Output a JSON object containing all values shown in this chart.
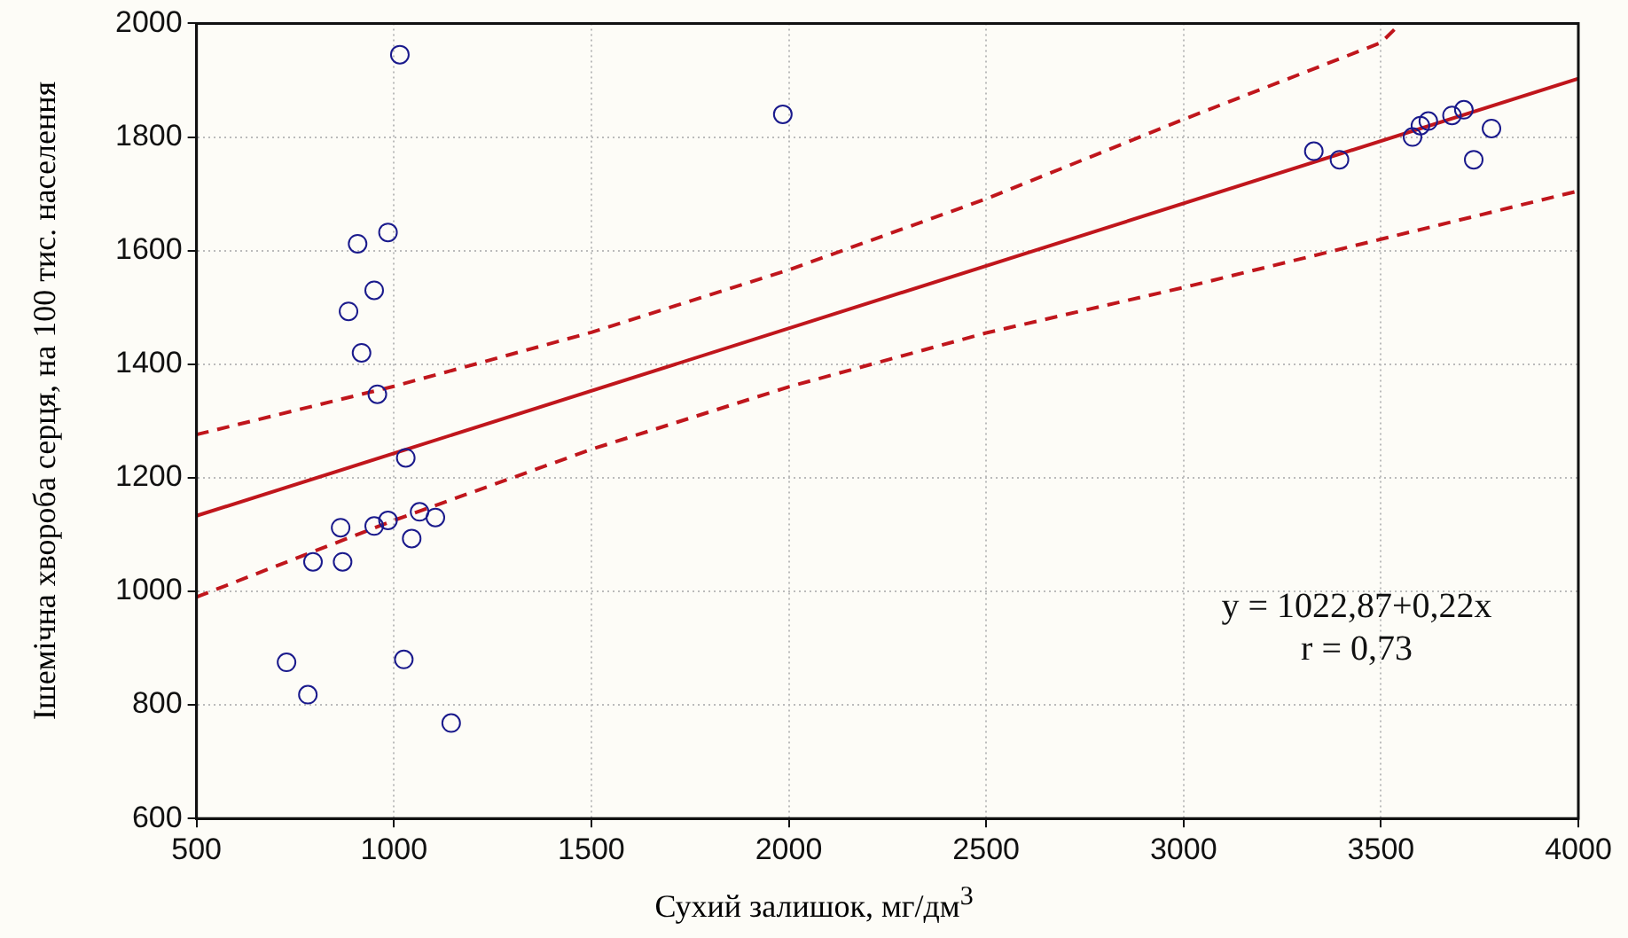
{
  "chart_data": {
    "type": "scatter",
    "xlabel": "Сухий залишок, мг/дм$^{3}$",
    "ylabel": "Ішемічна хвороба серця, на 100 тис. населення",
    "xlim": [
      500,
      4000
    ],
    "xticks": [
      500,
      1000,
      1500,
      2000,
      2500,
      3000,
      3500,
      4000
    ],
    "ylim": [
      600,
      2000
    ],
    "yticks": [
      600,
      800,
      1000,
      1200,
      1400,
      1600,
      1800,
      2000
    ],
    "grid": true,
    "legend": false,
    "annotations": [
      "y = 1022,87+0,22x",
      "r = 0,73"
    ],
    "series": [
      {
        "type": "scatter",
        "color": "#1a1a8c",
        "marker": "circle",
        "x": [
          1015,
          985,
          908,
          950,
          885,
          918,
          958,
          1030,
          865,
          950,
          985,
          1065,
          1105,
          1045,
          795,
          870,
          728,
          1025,
          782,
          1145,
          1985,
          3330,
          3395,
          3580,
          3600,
          3620,
          3680,
          3710,
          3735,
          3780
        ],
        "values": [
          1945,
          1632,
          1612,
          1530,
          1493,
          1420,
          1347,
          1235,
          1112,
          1115,
          1125,
          1140,
          1130,
          1093,
          1052,
          1052,
          875,
          880,
          818,
          768,
          1840,
          1775,
          1760,
          1800,
          1820,
          1828,
          1838,
          1848,
          1760,
          1815
        ]
      },
      {
        "type": "line",
        "color": "#c0161c",
        "line_style": "solid",
        "x": [
          500,
          4000
        ],
        "values": [
          1133,
          1903
        ]
      },
      {
        "type": "line",
        "color": "#c0161c",
        "line_style": "dashed",
        "x": [
          500,
          1000,
          1500,
          2000,
          2500,
          3000,
          3500,
          3550
        ],
        "values": [
          1276,
          1361,
          1456,
          1566,
          1691,
          1831,
          1966,
          2000
        ]
      },
      {
        "type": "line",
        "color": "#c0161c",
        "line_style": "dashed",
        "x": [
          500,
          1000,
          1500,
          2000,
          2500,
          3000,
          3500,
          4000
        ],
        "values": [
          990,
          1125,
          1250,
          1360,
          1455,
          1535,
          1620,
          1705
        ]
      }
    ]
  }
}
